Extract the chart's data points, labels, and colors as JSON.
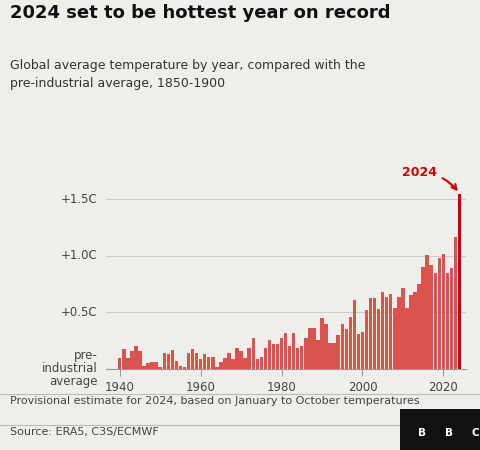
{
  "title": "2024 set to be hottest year on record",
  "subtitle": "Global average temperature by year, compared with the\npre-industrial average, 1850-1900",
  "footnote": "Provisional estimate for 2024, based on January to October temperatures",
  "source": "Source: ERA5, C3S/ECMWF",
  "ytick_vals": [
    1.5,
    1.0,
    0.5,
    0.0
  ],
  "ytick_labels": [
    "+1.5C",
    "+1.0C",
    "+0.5C",
    "pre-\nindustrial\naverage"
  ],
  "annotation_2024": "2024",
  "bar_color": "#d9534f",
  "bar_color_2024": "#cc0000",
  "bg_color": "#f0eeeb",
  "line_color": "#cccccc",
  "text_color": "#444444",
  "years": [
    1940,
    1941,
    1942,
    1943,
    1944,
    1945,
    1946,
    1947,
    1948,
    1949,
    1950,
    1951,
    1952,
    1953,
    1954,
    1955,
    1956,
    1957,
    1958,
    1959,
    1960,
    1961,
    1962,
    1963,
    1964,
    1965,
    1966,
    1967,
    1968,
    1969,
    1970,
    1971,
    1972,
    1973,
    1974,
    1975,
    1976,
    1977,
    1978,
    1979,
    1980,
    1981,
    1982,
    1983,
    1984,
    1985,
    1986,
    1987,
    1988,
    1989,
    1990,
    1991,
    1992,
    1993,
    1994,
    1995,
    1996,
    1997,
    1998,
    1999,
    2000,
    2001,
    2002,
    2003,
    2004,
    2005,
    2006,
    2007,
    2008,
    2009,
    2010,
    2011,
    2012,
    2013,
    2014,
    2015,
    2016,
    2017,
    2018,
    2019,
    2020,
    2021,
    2022,
    2023,
    2024
  ],
  "temps": [
    0.1,
    0.18,
    0.1,
    0.16,
    0.2,
    0.16,
    0.03,
    0.05,
    0.06,
    0.06,
    0.02,
    0.14,
    0.13,
    0.17,
    0.07,
    0.03,
    0.02,
    0.14,
    0.18,
    0.14,
    0.09,
    0.13,
    0.11,
    0.11,
    0.02,
    0.06,
    0.1,
    0.14,
    0.09,
    0.19,
    0.16,
    0.1,
    0.19,
    0.27,
    0.09,
    0.11,
    0.19,
    0.26,
    0.22,
    0.22,
    0.27,
    0.32,
    0.2,
    0.32,
    0.19,
    0.2,
    0.27,
    0.36,
    0.36,
    0.26,
    0.45,
    0.4,
    0.23,
    0.23,
    0.3,
    0.4,
    0.35,
    0.46,
    0.61,
    0.31,
    0.33,
    0.52,
    0.63,
    0.63,
    0.53,
    0.68,
    0.64,
    0.66,
    0.54,
    0.64,
    0.72,
    0.54,
    0.65,
    0.68,
    0.75,
    0.9,
    1.01,
    0.92,
    0.85,
    0.98,
    1.02,
    0.85,
    0.89,
    1.17,
    1.55
  ],
  "xlim": [
    1936.5,
    2025.5
  ],
  "ylim": [
    0,
    1.75
  ],
  "xticks": [
    1940,
    1960,
    1980,
    2000,
    2020
  ],
  "title_fontsize": 13,
  "subtitle_fontsize": 9,
  "tick_fontsize": 8.5,
  "footnote_fontsize": 8,
  "source_fontsize": 8
}
